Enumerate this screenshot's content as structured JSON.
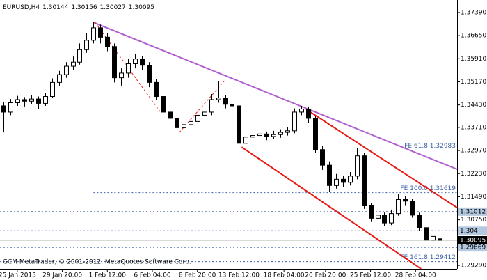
{
  "chart_data": {
    "type": "candlestick",
    "title": "EURUSD,H4",
    "footer": "GCM MetaTrader, © 2001-2012, MetaQuotes Software Corp.",
    "xlim": [
      0,
      66
    ],
    "xticks": [
      {
        "value": 2.5,
        "label": "25 Jan 2013"
      },
      {
        "value": 9,
        "label": "29 Jan 20:00"
      },
      {
        "value": 15.5,
        "label": "1 Feb 12:00"
      },
      {
        "value": 22,
        "label": "6 Feb 04:00"
      },
      {
        "value": 28.5,
        "label": "8 Feb 20:00"
      },
      {
        "value": 34.5,
        "label": "13 Feb 12:00"
      },
      {
        "value": 41,
        "label": "18 Feb 04:00"
      },
      {
        "value": 47,
        "label": "20 Feb 20:00"
      },
      {
        "value": 53.5,
        "label": "25 Feb 12:00"
      },
      {
        "value": 60,
        "label": "28 Feb 04:00"
      }
    ],
    "ylim": [
      1.2918,
      1.3779
    ],
    "yticks": [
      {
        "value": 1.3739,
        "label": "1.37390"
      },
      {
        "value": 1.3665,
        "label": "1.36650"
      },
      {
        "value": 1.3591,
        "label": "1.35910"
      },
      {
        "value": 1.3517,
        "label": "1.35170"
      },
      {
        "value": 1.3443,
        "label": "1.34430"
      },
      {
        "value": 1.3371,
        "label": "1.33710"
      },
      {
        "value": 1.3297,
        "label": "1.32970"
      },
      {
        "value": 1.3223,
        "label": "1.32230"
      },
      {
        "value": 1.3149,
        "label": "1.31490"
      },
      {
        "value": 1.3075,
        "label": "1.30750"
      },
      {
        "value": 1.2929,
        "label": "1.29290"
      }
    ],
    "open": [
      1.344,
      1.342,
      1.345,
      1.346,
      1.3455,
      1.3462,
      1.3448,
      1.347,
      1.3515,
      1.354,
      1.3567,
      1.358,
      1.362,
      1.365,
      1.369,
      1.366,
      1.363,
      1.353,
      1.3545,
      1.3575,
      1.359,
      1.357,
      1.3515,
      1.347,
      1.342,
      1.34,
      1.337,
      1.338,
      1.339,
      1.341,
      1.342,
      1.346,
      1.3465,
      1.3445,
      1.344,
      1.332,
      1.334,
      1.3345,
      1.335,
      1.3342,
      1.3348,
      1.3355,
      1.336,
      1.342,
      1.343,
      1.34,
      1.33,
      1.325,
      1.3185,
      1.3205,
      1.3195,
      1.3215,
      1.328,
      1.312,
      1.308,
      1.309,
      1.3065,
      1.3095,
      1.314,
      1.3135,
      1.309,
      1.305,
      1.301,
      1.30144
    ],
    "high": [
      1.3452,
      1.3462,
      1.3472,
      1.3468,
      1.3475,
      1.347,
      1.348,
      1.3528,
      1.3552,
      1.358,
      1.3598,
      1.364,
      1.3672,
      1.3708,
      1.37,
      1.3672,
      1.364,
      1.356,
      1.359,
      1.3605,
      1.36,
      1.358,
      1.3525,
      1.3478,
      1.3432,
      1.341,
      1.3392,
      1.3402,
      1.3422,
      1.3432,
      1.3478,
      1.352,
      1.3475,
      1.3458,
      1.3448,
      1.3352,
      1.336,
      1.3362,
      1.3358,
      1.336,
      1.3365,
      1.3372,
      1.3432,
      1.344,
      1.3438,
      1.3408,
      1.3312,
      1.3262,
      1.3222,
      1.3215,
      1.3228,
      1.3305,
      1.329,
      1.313,
      1.3108,
      1.3098,
      1.3108,
      1.3158,
      1.315,
      1.3142,
      1.3098,
      1.3058,
      1.3035,
      1.30156
    ],
    "low": [
      1.3355,
      1.341,
      1.344,
      1.3438,
      1.3445,
      1.343,
      1.344,
      1.3465,
      1.3505,
      1.353,
      1.3555,
      1.3572,
      1.361,
      1.364,
      1.364,
      1.3615,
      1.3515,
      1.3505,
      1.353,
      1.356,
      1.3555,
      1.35,
      1.346,
      1.3405,
      1.3385,
      1.3355,
      1.336,
      1.3368,
      1.338,
      1.3398,
      1.341,
      1.345,
      1.3432,
      1.342,
      1.3308,
      1.331,
      1.3325,
      1.333,
      1.333,
      1.3335,
      1.3338,
      1.3345,
      1.3352,
      1.341,
      1.3385,
      1.329,
      1.3235,
      1.3165,
      1.3175,
      1.318,
      1.3185,
      1.3205,
      1.311,
      1.3068,
      1.307,
      1.3055,
      1.3058,
      1.3088,
      1.312,
      1.3082,
      1.304,
      1.2985,
      1.3,
      1.30027
    ],
    "close": [
      1.342,
      1.345,
      1.346,
      1.3455,
      1.3462,
      1.3448,
      1.347,
      1.3515,
      1.354,
      1.3567,
      1.358,
      1.362,
      1.365,
      1.369,
      1.366,
      1.363,
      1.353,
      1.3545,
      1.3575,
      1.359,
      1.357,
      1.3515,
      1.347,
      1.342,
      1.34,
      1.337,
      1.338,
      1.339,
      1.341,
      1.342,
      1.346,
      1.3465,
      1.3445,
      1.344,
      1.332,
      1.334,
      1.3345,
      1.335,
      1.3342,
      1.3348,
      1.3355,
      1.336,
      1.342,
      1.343,
      1.34,
      1.33,
      1.325,
      1.3185,
      1.3205,
      1.3195,
      1.3215,
      1.328,
      1.312,
      1.308,
      1.309,
      1.3065,
      1.3095,
      1.314,
      1.3135,
      1.309,
      1.305,
      1.301,
      1.3022,
      1.30095
    ],
    "trendlines": [
      {
        "color": "#b05fcf",
        "dash": false,
        "x": [
          13.4,
          66
        ],
        "y": [
          1.3708,
          1.3237
        ]
      },
      {
        "color": "#e8170f",
        "dash": false,
        "x": [
          44.2,
          66
        ],
        "y": [
          1.3429,
          1.3114
        ]
      },
      {
        "color": "#e8170f",
        "dash": false,
        "x": [
          34.9,
          60.8
        ],
        "y": [
          1.3308,
          1.2918
        ]
      },
      {
        "color": "#e8170f",
        "dash": true,
        "x": [
          13.7,
          23.1
        ],
        "y": [
          1.3708,
          1.3422
        ]
      },
      {
        "color": "#e8170f",
        "dash": true,
        "x": [
          25.9,
          32.4
        ],
        "y": [
          1.3355,
          1.352
        ]
      }
    ],
    "fe_levels": [
      {
        "label": "FE 61.8  1.32983",
        "value": 1.32983,
        "x_start": 13.5
      },
      {
        "label": "FE 100.0  1.31619",
        "value": 1.31619,
        "x_start": 13.5
      },
      {
        "label": "FE 161.8  1.29412",
        "value": 1.29412,
        "x_start": 0
      }
    ],
    "price_levels": [
      {
        "value": 1.31012,
        "color": "#b4c8e0"
      },
      {
        "value": 1.304,
        "color": "#b4c8e0"
      },
      {
        "value": 1.29869,
        "color": "#b4c8e0"
      }
    ],
    "bid": {
      "value": 1.30095,
      "color": "#000000"
    }
  }
}
